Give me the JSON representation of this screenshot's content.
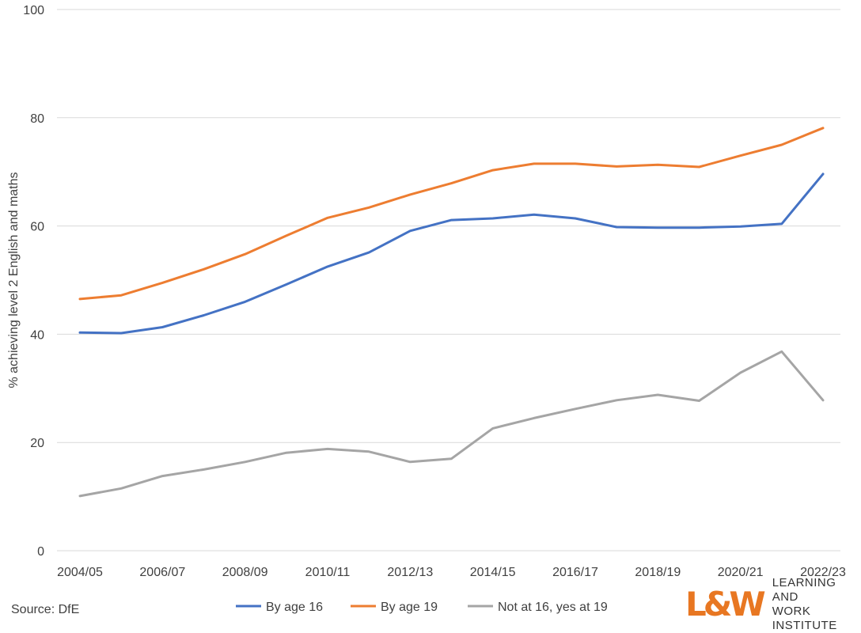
{
  "chart_data": {
    "type": "line",
    "title": "",
    "xlabel": "",
    "ylabel": "% achieving level 2 English and maths",
    "ylim": [
      0,
      100
    ],
    "yticks": [
      0,
      20,
      40,
      60,
      80,
      100
    ],
    "grid": true,
    "legend_position": "bottom",
    "categories": [
      "2004/05",
      "2005/06",
      "2006/07",
      "2007/08",
      "2008/09",
      "2009/10",
      "2010/11",
      "2011/12",
      "2012/13",
      "2013/14",
      "2014/15",
      "2015/16",
      "2016/17",
      "2017/18",
      "2018/19",
      "2019/20",
      "2020/21",
      "2021/22",
      "2022/23"
    ],
    "xtick_labels": [
      "2004/05",
      "2006/07",
      "2008/09",
      "2010/11",
      "2012/13",
      "2014/15",
      "2016/17",
      "2018/19",
      "2020/21",
      "2022/23"
    ],
    "series": [
      {
        "name": "By age 16",
        "color": "#4472c4",
        "values": [
          40.3,
          40.2,
          41.3,
          43.5,
          46.0,
          49.2,
          52.5,
          55.1,
          59.1,
          61.1,
          61.4,
          62.1,
          61.4,
          59.8,
          59.7,
          59.7,
          59.9,
          60.4,
          69.6
        ]
      },
      {
        "name": "By age 19",
        "color": "#ed7d31",
        "values": [
          46.5,
          47.2,
          49.5,
          52.0,
          54.8,
          58.2,
          61.5,
          63.4,
          65.8,
          67.9,
          70.3,
          71.5,
          71.5,
          71.0,
          71.3,
          70.9,
          73.0,
          75.0,
          78.1
        ]
      },
      {
        "name": "Not at 16, yes at 19",
        "color": "#a5a5a5",
        "values": [
          10.1,
          11.5,
          13.8,
          15.0,
          16.4,
          18.1,
          18.8,
          18.3,
          16.4,
          17.0,
          22.6,
          24.5,
          26.2,
          27.8,
          28.8,
          27.7,
          32.9,
          36.8,
          27.8
        ]
      }
    ]
  },
  "source": "Source: DfE",
  "logo": {
    "mark": "L&W",
    "line1": "LEARNING AND",
    "line2": "WORK INSTITUTE"
  }
}
